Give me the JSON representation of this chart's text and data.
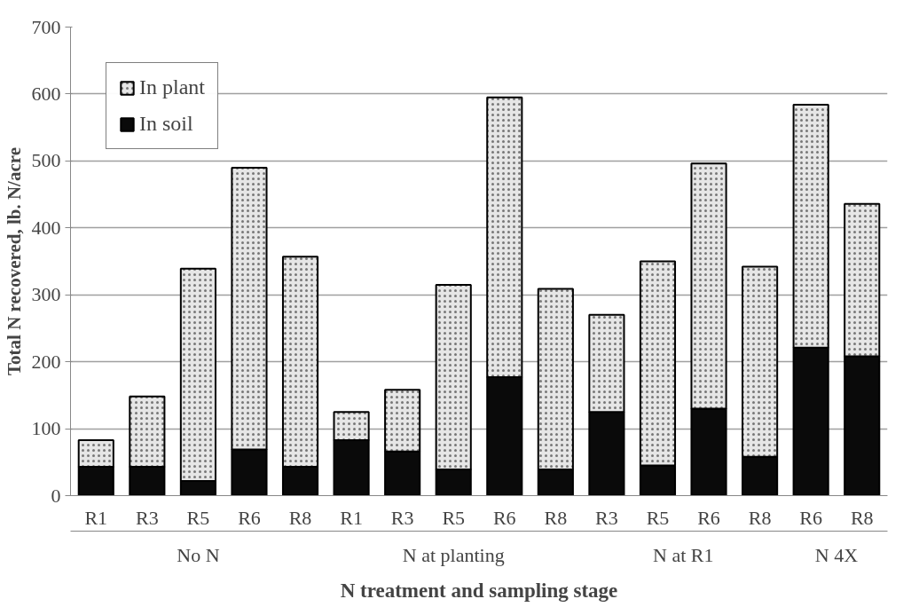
{
  "chart_data": {
    "type": "bar",
    "stacked": true,
    "xlabel": "N treatment and sampling stage",
    "ylabel": "Total N recovered, lb. N/acre",
    "categories": [
      "R1",
      "R3",
      "R5",
      "R6",
      "R8",
      "R1",
      "R3",
      "R5",
      "R6",
      "R8",
      "R3",
      "R5",
      "R6",
      "R8",
      "R6",
      "R8"
    ],
    "series": [
      {
        "name": "In soil",
        "color": "#0a0a0a",
        "values": [
          43,
          43,
          22,
          69,
          43,
          83,
          66,
          39,
          177,
          39,
          125,
          45,
          130,
          58,
          221,
          208
        ]
      },
      {
        "name": "In plant",
        "color": "#e6e6e6",
        "values": [
          40,
          105,
          317,
          421,
          314,
          42,
          92,
          276,
          418,
          270,
          145,
          305,
          366,
          284,
          363,
          228
        ]
      }
    ],
    "annotations": [
      "No N",
      "N at planting",
      "N at R1",
      "N 4X"
    ],
    "ylim": [
      0,
      700
    ],
    "yticks": [
      0,
      100,
      200,
      300,
      400,
      500,
      600,
      700
    ],
    "grid": "y",
    "legend": "top left"
  }
}
